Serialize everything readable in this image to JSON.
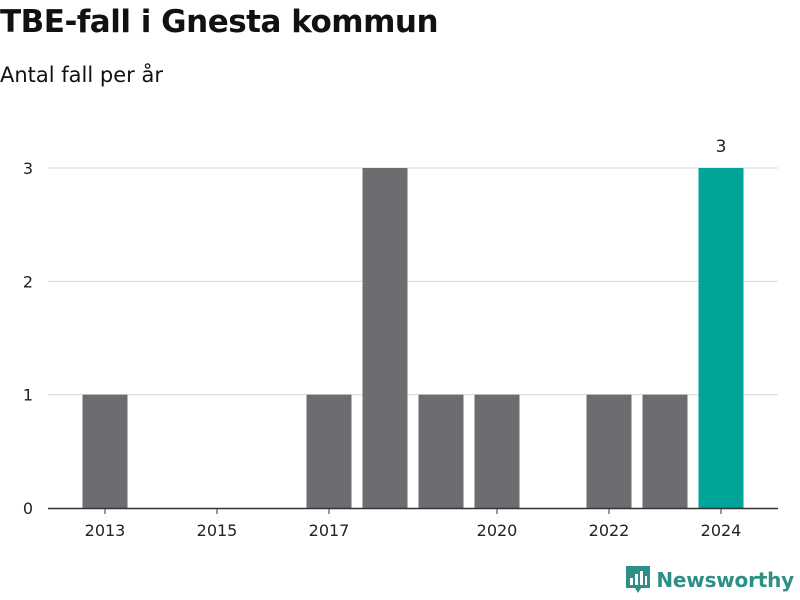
{
  "header": {
    "title": "TBE-fall i Gnesta kommun",
    "subtitle": "Antal fall per år"
  },
  "brand": {
    "name": "Newsworthy",
    "color": "#2e8f86",
    "icon": "bar-chart-logo-icon"
  },
  "colors": {
    "bar": "#6d6c71",
    "highlight": "#00a499",
    "grid": "#d9d9d9",
    "axis": "#333333"
  },
  "chart_data": {
    "type": "bar",
    "title": "TBE-fall i Gnesta kommun",
    "subtitle": "Antal fall per år",
    "xlabel": "",
    "ylabel": "",
    "x": [
      2013,
      2014,
      2015,
      2016,
      2017,
      2018,
      2019,
      2020,
      2021,
      2022,
      2023,
      2024
    ],
    "values": [
      1,
      0,
      0,
      0,
      1,
      3,
      1,
      1,
      0,
      1,
      1,
      3
    ],
    "highlight": 2024,
    "highlight_label": "3",
    "xticks": [
      "2013",
      "2015",
      "2017",
      "2020",
      "2022",
      "2024"
    ],
    "yticks": [
      "0",
      "1",
      "2",
      "3"
    ],
    "ylim": [
      0,
      3
    ],
    "grid": true,
    "legend": "none"
  }
}
